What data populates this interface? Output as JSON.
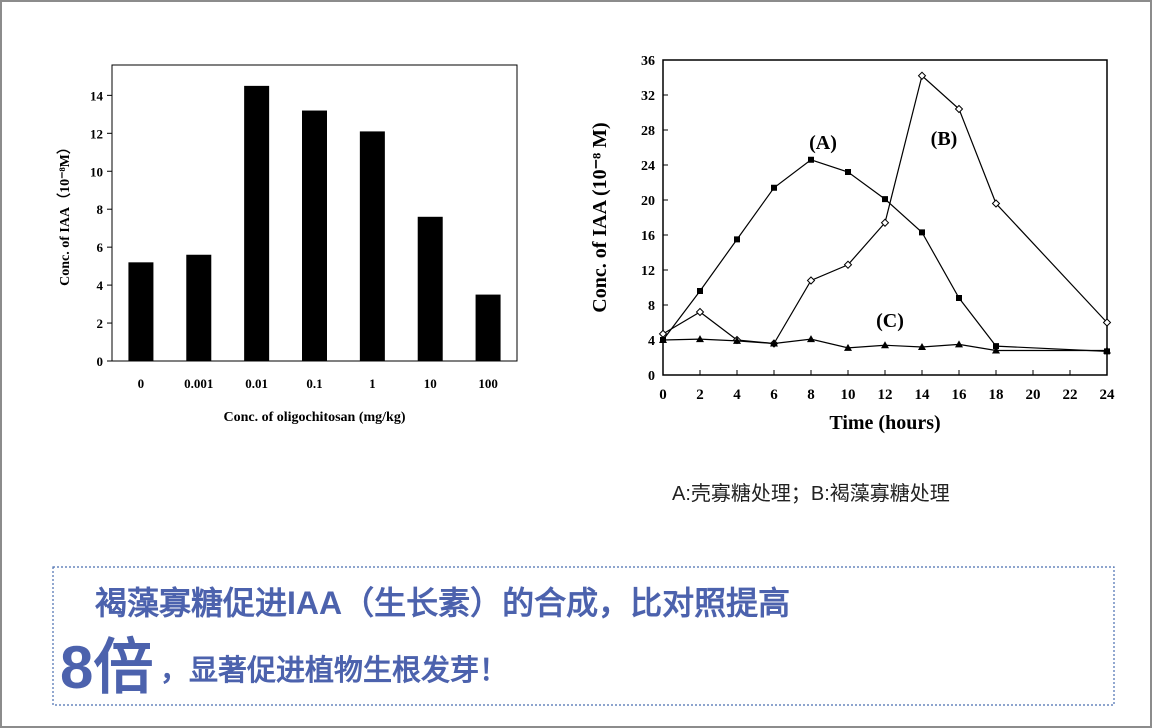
{
  "chart_data": [
    {
      "type": "bar",
      "xlabel": "Conc. of  oligochitosan (mg/kg)",
      "ylabel": "Conc. of IAA（10⁻⁸M）",
      "categories": [
        "0",
        "0.001",
        "0.01",
        "0.1",
        "1",
        "10",
        "100"
      ],
      "values": [
        5.2,
        5.6,
        14.5,
        13.2,
        12.1,
        7.6,
        3.5
      ],
      "color": "#000000",
      "ylim": [
        0,
        15.6
      ],
      "yticks": [
        0,
        2,
        4,
        6,
        8,
        10,
        12,
        14
      ]
    },
    {
      "type": "line",
      "xlabel": "Time (hours)",
      "ylabel": "Conc. of IAA (10⁻⁸ M)",
      "x": [
        0,
        2,
        4,
        6,
        8,
        10,
        12,
        14,
        16,
        18,
        24
      ],
      "xlim": [
        0,
        24
      ],
      "xticks": [
        0,
        2,
        4,
        6,
        8,
        10,
        12,
        14,
        16,
        18,
        20,
        22,
        24
      ],
      "ylim": [
        0,
        36
      ],
      "yticks": [
        0,
        4,
        8,
        12,
        16,
        20,
        24,
        28,
        32,
        36
      ],
      "series": [
        {
          "name": "(A)",
          "color": "#000000",
          "marker": "square",
          "values": [
            4.0,
            9.6,
            15.5,
            21.4,
            24.6,
            23.2,
            20.1,
            16.3,
            8.8,
            3.3,
            2.7
          ]
        },
        {
          "name": "(B)",
          "color": "#000000",
          "marker": "diamond",
          "values": [
            4.7,
            7.2,
            4.0,
            3.6,
            10.8,
            12.6,
            17.4,
            34.2,
            30.4,
            19.6,
            6.0
          ]
        },
        {
          "name": "(C)",
          "color": "#000000",
          "marker": "triangle",
          "values": [
            4.0,
            4.1,
            3.9,
            3.6,
            4.1,
            3.1,
            3.4,
            3.2,
            3.5,
            2.8,
            2.8
          ]
        }
      ]
    }
  ],
  "caption": "A:壳寡糖处理；B:褐藻寡糖处理",
  "highlight": {
    "line1": "褐藻寡糖促进IAA（生长素）的合成，比对照提高",
    "big": "8倍",
    "line2": "，显著促进植物生根发芽！"
  }
}
